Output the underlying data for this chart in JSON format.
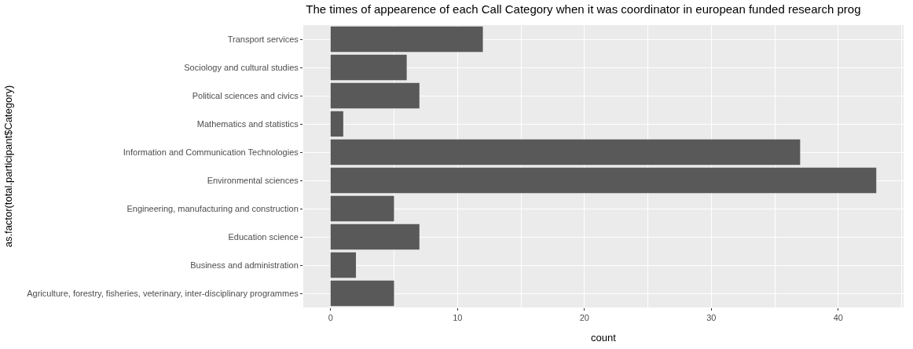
{
  "chart_data": {
    "type": "bar",
    "orientation": "horizontal",
    "title": "The times of appearence of each Call Category when it was coordinator in european funded research prog",
    "xlabel": "count",
    "ylabel": "as.factor(total.participant$Category)",
    "categories": [
      "Transport services",
      "Sociology and cultural studies",
      "Political sciences and civics",
      "Mathematics and statistics",
      "Information and Communication Technologies",
      "Environmental sciences",
      "Engineering, manufacturing and construction",
      "Education science",
      "Business and administration",
      "Agriculture, forestry, fisheries, veterinary, inter-disciplinary programmes"
    ],
    "values": [
      12,
      6,
      7,
      1,
      37,
      43,
      5,
      7,
      2,
      5
    ],
    "color": "#595959",
    "xlim": [
      -2.15,
      45.15
    ],
    "xticks": [
      0,
      10,
      20,
      30,
      40
    ],
    "grid": true,
    "legend": false
  }
}
